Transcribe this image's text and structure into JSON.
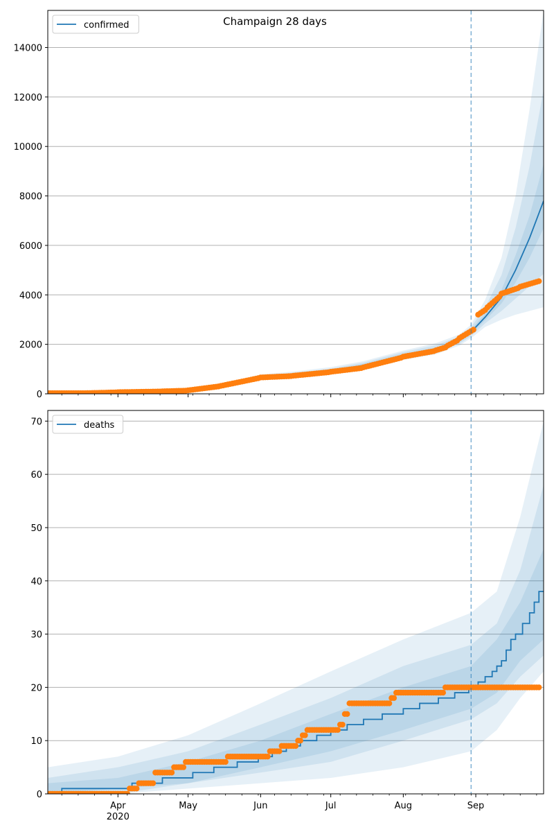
{
  "title": "Champaign 28 days",
  "colors": {
    "model": "#1f77b4",
    "observed": "#ff7f0e",
    "band": "#1f77b4",
    "grid": "#b0b0b0",
    "forecast_line": "#1f77b4"
  },
  "chart_data": [
    {
      "type": "line",
      "name": "confirmed-panel",
      "legend": "confirmed",
      "legend_position": "top-left",
      "grid": "y",
      "x_range": [
        "2020-03-02",
        "2020-09-30"
      ],
      "ylim": [
        0,
        15500
      ],
      "yticks": [
        0,
        2000,
        4000,
        6000,
        8000,
        10000,
        12000,
        14000
      ],
      "forecast_start": "2020-08-30",
      "model_series": {
        "name": "confirmed",
        "x": [
          "2020-03-02",
          "2020-03-15",
          "2020-04-01",
          "2020-04-15",
          "2020-05-01",
          "2020-05-15",
          "2020-06-01",
          "2020-06-15",
          "2020-07-01",
          "2020-07-15",
          "2020-08-01",
          "2020-08-15",
          "2020-08-25",
          "2020-08-30",
          "2020-09-05",
          "2020-09-12",
          "2020-09-18",
          "2020-09-24",
          "2020-09-30"
        ],
        "y": [
          5,
          10,
          60,
          90,
          120,
          320,
          650,
          780,
          920,
          1150,
          1550,
          1800,
          2150,
          2500,
          3100,
          3900,
          5000,
          6300,
          7800
        ]
      },
      "bands": [
        {
          "lower": [
            0,
            0,
            30,
            50,
            80,
            250,
            560,
            680,
            800,
            1000,
            1370,
            1600,
            1950,
            2250,
            2700,
            3000,
            3200,
            3350,
            3500
          ],
          "upper": [
            20,
            30,
            100,
            140,
            180,
            400,
            780,
            900,
            1080,
            1320,
            1750,
            2050,
            2400,
            2800,
            3800,
            5500,
            8000,
            11500,
            15500
          ]
        },
        {
          "lower": [
            0,
            2,
            40,
            60,
            95,
            275,
            590,
            715,
            840,
            1055,
            1430,
            1665,
            2020,
            2335,
            2850,
            3350,
            3850,
            4350,
            4850
          ],
          "upper": [
            15,
            22,
            85,
            120,
            160,
            370,
            730,
            850,
            1020,
            1260,
            1690,
            1970,
            2320,
            2700,
            3500,
            4800,
            6700,
            9200,
            12300
          ]
        },
        {
          "lower": [
            1,
            5,
            50,
            75,
            108,
            300,
            620,
            750,
            880,
            1105,
            1490,
            1735,
            2090,
            2420,
            2975,
            3650,
            4500,
            5500,
            6700
          ],
          "upper": [
            10,
            16,
            72,
            105,
            140,
            345,
            690,
            815,
            970,
            1205,
            1620,
            1875,
            2225,
            2600,
            3250,
            4200,
            5600,
            7200,
            9300
          ]
        }
      ],
      "observed": [
        {
          "from": "2020-03-02",
          "to": "2020-03-20",
          "y0": 25,
          "y1": 28
        },
        {
          "from": "2020-03-20",
          "to": "2020-04-01",
          "y0": 30,
          "y1": 60
        },
        {
          "from": "2020-04-01",
          "to": "2020-04-20",
          "y0": 65,
          "y1": 95
        },
        {
          "from": "2020-04-20",
          "to": "2020-05-01",
          "y0": 100,
          "y1": 130
        },
        {
          "from": "2020-05-01",
          "to": "2020-05-15",
          "y0": 140,
          "y1": 310
        },
        {
          "from": "2020-05-15",
          "to": "2020-06-01",
          "y0": 320,
          "y1": 650
        },
        {
          "from": "2020-06-01",
          "to": "2020-06-15",
          "y0": 660,
          "y1": 720
        },
        {
          "from": "2020-06-15",
          "to": "2020-07-01",
          "y0": 730,
          "y1": 880
        },
        {
          "from": "2020-07-01",
          "to": "2020-07-15",
          "y0": 890,
          "y1": 1050
        },
        {
          "from": "2020-07-15",
          "to": "2020-08-01",
          "y0": 1070,
          "y1": 1480
        },
        {
          "from": "2020-08-01",
          "to": "2020-08-15",
          "y0": 1500,
          "y1": 1740
        },
        {
          "from": "2020-08-15",
          "to": "2020-08-20",
          "y0": 1760,
          "y1": 1900
        },
        {
          "from": "2020-08-20",
          "to": "2020-08-25",
          "y0": 1950,
          "y1": 2200
        },
        {
          "from": "2020-08-25",
          "to": "2020-09-01",
          "y0": 2250,
          "y1": 2650
        },
        {
          "from": "2020-09-02",
          "to": "2020-09-06",
          "y0": 3200,
          "y1": 3450
        },
        {
          "from": "2020-09-06",
          "to": "2020-09-12",
          "y0": 3500,
          "y1": 4000
        },
        {
          "from": "2020-09-12",
          "to": "2020-09-20",
          "y0": 4050,
          "y1": 4300
        },
        {
          "from": "2020-09-20",
          "to": "2020-09-29",
          "y0": 4330,
          "y1": 4580
        }
      ]
    },
    {
      "type": "line",
      "name": "deaths-panel",
      "legend": "deaths",
      "legend_position": "top-left",
      "grid": "y",
      "x_range": [
        "2020-03-02",
        "2020-09-30"
      ],
      "ylim": [
        0,
        72
      ],
      "yticks": [
        0,
        10,
        20,
        30,
        40,
        50,
        60,
        70
      ],
      "forecast_start": "2020-08-30",
      "xticks": [
        {
          "date": "2020-04-01",
          "label": "Apr",
          "sub": "2020"
        },
        {
          "date": "2020-05-01",
          "label": "May"
        },
        {
          "date": "2020-06-01",
          "label": "Jun"
        },
        {
          "date": "2020-07-01",
          "label": "Jul"
        },
        {
          "date": "2020-08-01",
          "label": "Aug"
        },
        {
          "date": "2020-09-01",
          "label": "Sep"
        }
      ],
      "model_steps": [
        {
          "from": "2020-03-02",
          "to": "2020-03-08",
          "y": 0
        },
        {
          "from": "2020-03-08",
          "to": "2020-04-07",
          "y": 1
        },
        {
          "from": "2020-04-07",
          "to": "2020-04-20",
          "y": 2
        },
        {
          "from": "2020-04-20",
          "to": "2020-05-03",
          "y": 3
        },
        {
          "from": "2020-05-03",
          "to": "2020-05-12",
          "y": 4
        },
        {
          "from": "2020-05-12",
          "to": "2020-05-22",
          "y": 5
        },
        {
          "from": "2020-05-22",
          "to": "2020-05-31",
          "y": 6
        },
        {
          "from": "2020-05-31",
          "to": "2020-06-06",
          "y": 7
        },
        {
          "from": "2020-06-06",
          "to": "2020-06-12",
          "y": 8
        },
        {
          "from": "2020-06-12",
          "to": "2020-06-18",
          "y": 9
        },
        {
          "from": "2020-06-18",
          "to": "2020-06-25",
          "y": 10
        },
        {
          "from": "2020-06-25",
          "to": "2020-07-01",
          "y": 11
        },
        {
          "from": "2020-07-01",
          "to": "2020-07-08",
          "y": 12
        },
        {
          "from": "2020-07-08",
          "to": "2020-07-15",
          "y": 13
        },
        {
          "from": "2020-07-15",
          "to": "2020-07-23",
          "y": 14
        },
        {
          "from": "2020-07-23",
          "to": "2020-08-01",
          "y": 15
        },
        {
          "from": "2020-08-01",
          "to": "2020-08-08",
          "y": 16
        },
        {
          "from": "2020-08-08",
          "to": "2020-08-16",
          "y": 17
        },
        {
          "from": "2020-08-16",
          "to": "2020-08-23",
          "y": 18
        },
        {
          "from": "2020-08-23",
          "to": "2020-08-29",
          "y": 19
        },
        {
          "from": "2020-08-29",
          "to": "2020-09-02",
          "y": 20
        },
        {
          "from": "2020-09-02",
          "to": "2020-09-05",
          "y": 21
        },
        {
          "from": "2020-09-05",
          "to": "2020-09-08",
          "y": 22
        },
        {
          "from": "2020-09-08",
          "to": "2020-09-10",
          "y": 23
        },
        {
          "from": "2020-09-10",
          "to": "2020-09-12",
          "y": 24
        },
        {
          "from": "2020-09-12",
          "to": "2020-09-14",
          "y": 25
        },
        {
          "from": "2020-09-14",
          "to": "2020-09-16",
          "y": 27
        },
        {
          "from": "2020-09-16",
          "to": "2020-09-18",
          "y": 29
        },
        {
          "from": "2020-09-18",
          "to": "2020-09-21",
          "y": 30
        },
        {
          "from": "2020-09-21",
          "to": "2020-09-24",
          "y": 32
        },
        {
          "from": "2020-09-24",
          "to": "2020-09-26",
          "y": 34
        },
        {
          "from": "2020-09-26",
          "to": "2020-09-28",
          "y": 36
        },
        {
          "from": "2020-09-28",
          "to": "2020-09-30",
          "y": 38
        }
      ],
      "bands": [
        {
          "x": [
            "2020-03-02",
            "2020-04-01",
            "2020-05-01",
            "2020-06-01",
            "2020-07-01",
            "2020-08-01",
            "2020-08-30",
            "2020-09-10",
            "2020-09-20",
            "2020-09-30"
          ],
          "lower": [
            0,
            0,
            1,
            2,
            3,
            5,
            8,
            12,
            18,
            23
          ],
          "upper": [
            5,
            7,
            11,
            17,
            23,
            29,
            34,
            38,
            52,
            70
          ]
        },
        {
          "x": [
            "2020-03-02",
            "2020-04-01",
            "2020-05-01",
            "2020-06-01",
            "2020-07-01",
            "2020-08-01",
            "2020-08-30",
            "2020-09-10",
            "2020-09-20",
            "2020-09-30"
          ],
          "lower": [
            0,
            0,
            2,
            4,
            6,
            10,
            14,
            17,
            22,
            26
          ],
          "upper": [
            3,
            5,
            8,
            13,
            18,
            24,
            28,
            32,
            42,
            58
          ]
        },
        {
          "x": [
            "2020-03-02",
            "2020-04-01",
            "2020-05-01",
            "2020-06-01",
            "2020-07-01",
            "2020-08-01",
            "2020-08-30",
            "2020-09-10",
            "2020-09-20",
            "2020-09-30"
          ],
          "lower": [
            0,
            1,
            2,
            5,
            8,
            12,
            16,
            19,
            25,
            29
          ],
          "upper": [
            2,
            3,
            6,
            10,
            15,
            20,
            24,
            29,
            36,
            46
          ]
        }
      ],
      "observed_steps": [
        {
          "from": "2020-03-02",
          "to": "2020-04-06",
          "y": 0
        },
        {
          "from": "2020-04-06",
          "to": "2020-04-10",
          "y": 1
        },
        {
          "from": "2020-04-10",
          "to": "2020-04-17",
          "y": 2
        },
        {
          "from": "2020-04-17",
          "to": "2020-04-25",
          "y": 4
        },
        {
          "from": "2020-04-25",
          "to": "2020-04-30",
          "y": 5
        },
        {
          "from": "2020-04-30",
          "to": "2020-05-18",
          "y": 6
        },
        {
          "from": "2020-05-18",
          "to": "2020-06-05",
          "y": 7
        },
        {
          "from": "2020-06-05",
          "to": "2020-06-10",
          "y": 8
        },
        {
          "from": "2020-06-10",
          "to": "2020-06-17",
          "y": 9
        },
        {
          "from": "2020-06-17",
          "to": "2020-06-19",
          "y": 10
        },
        {
          "from": "2020-06-19",
          "to": "2020-06-21",
          "y": 11
        },
        {
          "from": "2020-06-21",
          "to": "2020-07-05",
          "y": 12
        },
        {
          "from": "2020-07-05",
          "to": "2020-07-07",
          "y": 13
        },
        {
          "from": "2020-07-07",
          "to": "2020-07-09",
          "y": 15
        },
        {
          "from": "2020-07-09",
          "to": "2020-07-27",
          "y": 17
        },
        {
          "from": "2020-07-27",
          "to": "2020-07-29",
          "y": 18
        },
        {
          "from": "2020-07-29",
          "to": "2020-08-19",
          "y": 19
        },
        {
          "from": "2020-08-19",
          "to": "2020-09-29",
          "y": 20
        }
      ]
    }
  ]
}
